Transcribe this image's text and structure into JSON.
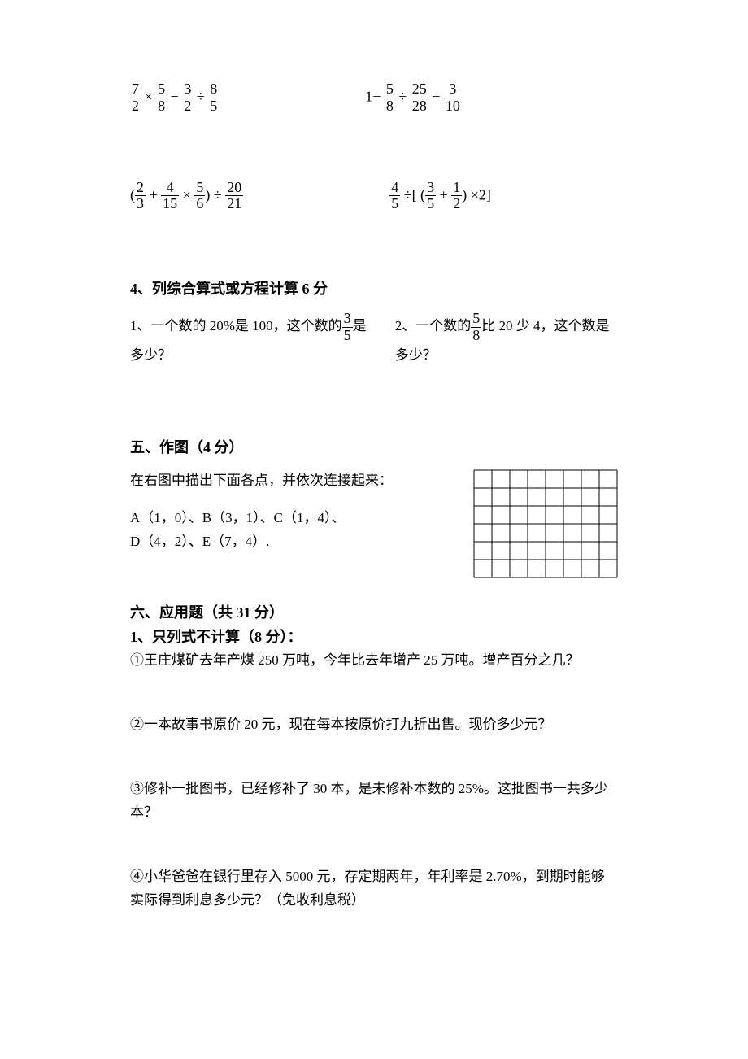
{
  "math_expressions": {
    "row1": {
      "left": {
        "parts": [
          "7/2",
          "×",
          "5/8",
          "−",
          "3/2",
          "÷",
          "8/5"
        ]
      },
      "right": {
        "parts": [
          "1−",
          "5/8",
          "÷",
          "25/28",
          "−",
          "3/10"
        ]
      }
    },
    "row2": {
      "left": {
        "prefix": "(",
        "parts": [
          "2/3",
          "+",
          "4/15",
          "×",
          "5/6"
        ],
        "suffix": ") ÷",
        "tail": "20/21"
      },
      "right": {
        "parts": [
          "4/5",
          "÷[ (",
          "3/5",
          "+",
          "1/2",
          ") ×2]"
        ]
      }
    }
  },
  "section4": {
    "title": "4、列综合算式或方程计算 6 分",
    "q1_pre": "1、一个数的 20%是 100，这个数的",
    "q1_frac": "3/5",
    "q1_post": "是多少？",
    "q2_pre": "2、一个数的",
    "q2_frac": "5/8",
    "q2_post": "比 20 少 4，这个数是多少？"
  },
  "section5": {
    "title": "五、作图（4 分）",
    "desc": "在右图中描出下面各点，并依次连接起来：",
    "points1": "A（1，0）、B（3，1）、C（1，4）、",
    "points2": "D（4，2）、E（7，4）.",
    "grid": {
      "cols": 8,
      "rows": 6,
      "cell_size": 22,
      "stroke": "#000000",
      "stroke_width": 1
    }
  },
  "section6": {
    "title": "六、应用题（共 31 分）",
    "sub1": "1、只列式不计算（8 分）：",
    "q1": "①王庄煤矿去年产煤 250 万吨，今年比去年增产 25 万吨。增产百分之几？",
    "q2": "②一本故事书原价 20 元，现在每本按原价打九折出售。现价多少元？",
    "q3": "③修补一批图书，已经修补了 30 本，是未修补本数的 25%。这批图书一共多少本？",
    "q4": "④小华爸爸在银行里存入 5000 元，存定期两年，年利率是 2.70%，到期时能够实际得到利息多少元？（免收利息税）"
  }
}
